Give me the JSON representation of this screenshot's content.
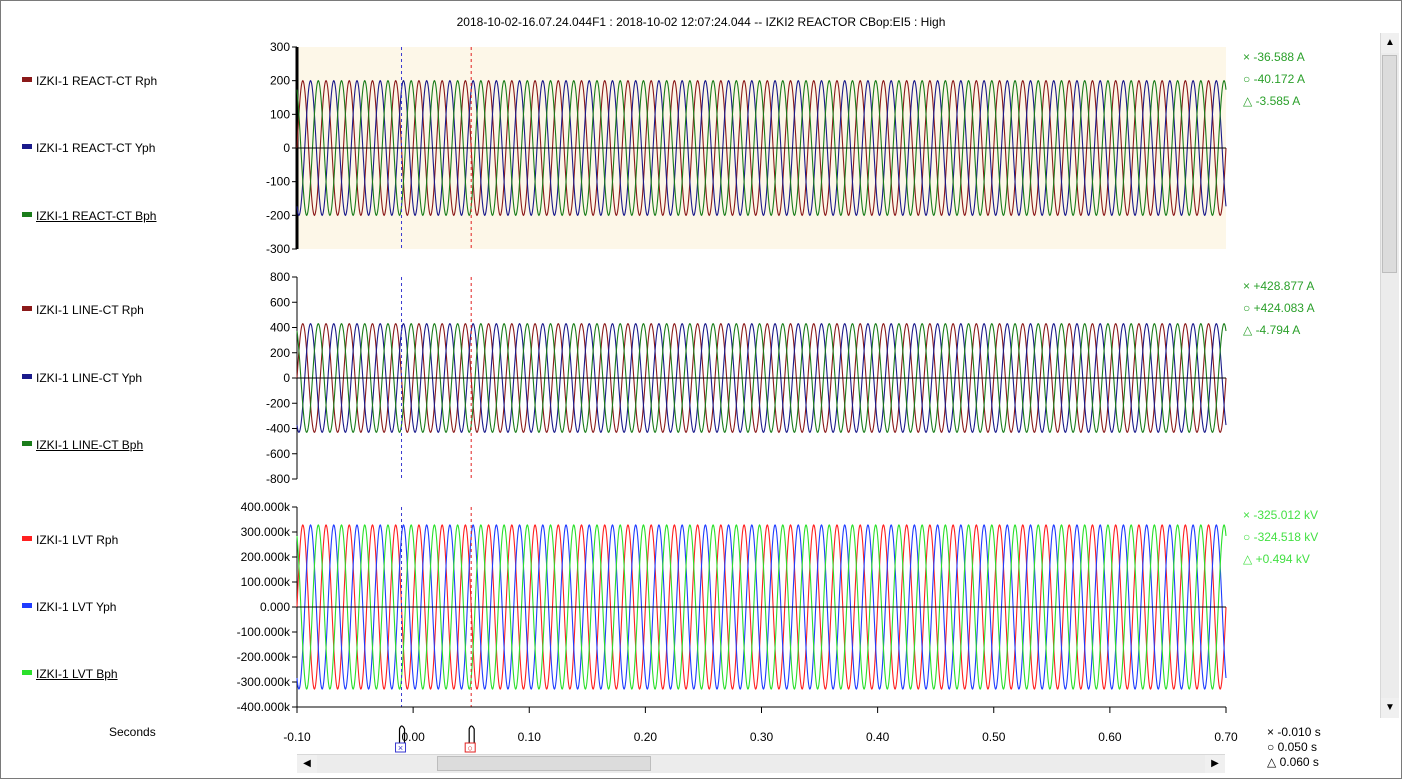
{
  "title": "2018-10-02-16.07.24.044F1 : 2018-10-02 12:07:24.044 -- IZKI2 REACTOR CBop:EI5 : High",
  "colors": {
    "r": "#8b1a1a",
    "y": "#1a1a8b",
    "b": "#1a7d1a",
    "lvt_r": "#ff2020",
    "lvt_y": "#1f3cff",
    "lvt_b": "#2be02b",
    "readout_a": "#2ba02b",
    "readout_v": "#44e044",
    "highlight_bg": "#fdf7e8",
    "cursor_x": "#3a3ad0",
    "cursor_o": "#e02020"
  },
  "panels": [
    {
      "id": "react-ct",
      "channels": [
        {
          "label": "IZKI-1 REACT-CT Rph",
          "color_key": "r",
          "underline": false
        },
        {
          "label": "IZKI-1 REACT-CT Yph",
          "color_key": "y",
          "underline": false
        },
        {
          "label": "IZKI-1 REACT-CT Bph",
          "color_key": "b",
          "underline": true
        }
      ],
      "y_ticks": [
        "300",
        "200",
        "100",
        "0",
        "-100",
        "-200",
        "-300"
      ],
      "y_range": [
        -300,
        300
      ],
      "amplitude": 200,
      "highlighted": true,
      "readouts": [
        "× -36.588  A",
        "○ -40.172  A",
        "△ -3.585  A"
      ],
      "readout_color_key": "readout_a"
    },
    {
      "id": "line-ct",
      "channels": [
        {
          "label": "IZKI-1 LINE-CT Rph",
          "color_key": "r",
          "underline": false
        },
        {
          "label": "IZKI-1 LINE-CT Yph",
          "color_key": "y",
          "underline": false
        },
        {
          "label": "IZKI-1 LINE-CT Bph",
          "color_key": "b",
          "underline": true
        }
      ],
      "y_ticks": [
        "800",
        "600",
        "400",
        "200",
        "0",
        "-200",
        "-400",
        "-600",
        "-800"
      ],
      "y_range": [
        -800,
        800
      ],
      "amplitude": 430,
      "highlighted": false,
      "readouts": [
        "× +428.877  A",
        "○ +424.083  A",
        "△ -4.794  A"
      ],
      "readout_color_key": "readout_a"
    },
    {
      "id": "lvt",
      "channels": [
        {
          "label": "IZKI-1 LVT Rph",
          "color_key": "lvt_r",
          "underline": false
        },
        {
          "label": "IZKI-1 LVT Yph",
          "color_key": "lvt_y",
          "underline": false
        },
        {
          "label": "IZKI-1 LVT Bph",
          "color_key": "lvt_b",
          "underline": true
        }
      ],
      "y_ticks": [
        "400.000k",
        "300.000k",
        "200.000k",
        "100.000k",
        "0.000",
        "-100.000k",
        "-200.000k",
        "-300.000k",
        "-400.000k"
      ],
      "y_range": [
        -400,
        400
      ],
      "amplitude": 328,
      "highlighted": false,
      "readouts": [
        "× -325.012  kV",
        "○ -324.518  kV",
        "△ +0.494  kV"
      ],
      "readout_color_key": "readout_v"
    }
  ],
  "x_axis": {
    "label": "Seconds",
    "ticks": [
      "-0.10",
      "0.00",
      "0.10",
      "0.20",
      "0.30",
      "0.40",
      "0.50",
      "0.60",
      "0.70"
    ],
    "range": [
      -0.1,
      0.7
    ],
    "frequency_hz": 50
  },
  "cursors": {
    "x_time": -0.01,
    "o_time": 0.05
  },
  "time_readouts": [
    "× -0.010 s",
    "○ 0.050 s",
    "△ 0.060 s"
  ]
}
